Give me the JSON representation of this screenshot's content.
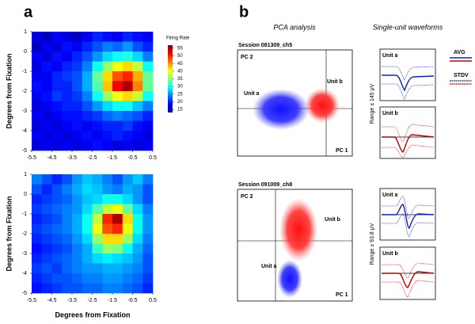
{
  "panel_a": {
    "label": "a",
    "xlim": [
      -5.5,
      0.5
    ],
    "ylim": [
      -5,
      1
    ],
    "xticks": [
      -5.5,
      -4.5,
      -3.5,
      -2.5,
      -1.5,
      -0.5,
      0.5
    ],
    "yticks": [
      1,
      0,
      -1,
      -2,
      -3,
      -4,
      -5
    ],
    "ylabel": "Degrees from Fixation",
    "xlabel": "Degrees from Fixation",
    "colorbar": {
      "title": "Firing Rate",
      "lim": [
        13,
        57
      ],
      "ticks": [
        55,
        50,
        45,
        40,
        35,
        30,
        25,
        20,
        15
      ]
    },
    "heatmaps": [
      {
        "values": [
          [
            17,
            16,
            18,
            17,
            16,
            18,
            20,
            19,
            18,
            20,
            19,
            18
          ],
          [
            16,
            18,
            17,
            19,
            18,
            20,
            22,
            24,
            23,
            25,
            22,
            20
          ],
          [
            18,
            17,
            19,
            18,
            20,
            22,
            25,
            28,
            30,
            31,
            28,
            24
          ],
          [
            17,
            19,
            18,
            20,
            21,
            24,
            30,
            36,
            40,
            42,
            38,
            30
          ],
          [
            18,
            18,
            20,
            21,
            22,
            26,
            34,
            42,
            48,
            50,
            44,
            34
          ],
          [
            19,
            18,
            20,
            20,
            22,
            26,
            33,
            43,
            52,
            55,
            46,
            34
          ],
          [
            18,
            19,
            21,
            20,
            21,
            24,
            30,
            36,
            40,
            42,
            38,
            30
          ],
          [
            17,
            18,
            19,
            20,
            20,
            22,
            25,
            28,
            30,
            30,
            27,
            24
          ],
          [
            18,
            17,
            18,
            19,
            19,
            20,
            21,
            23,
            24,
            23,
            22,
            20
          ],
          [
            17,
            18,
            17,
            18,
            19,
            18,
            19,
            20,
            20,
            21,
            19,
            18
          ],
          [
            18,
            17,
            18,
            17,
            18,
            19,
            18,
            19,
            20,
            19,
            18,
            17
          ],
          [
            17,
            18,
            17,
            18,
            17,
            18,
            19,
            18,
            17,
            18,
            17,
            18
          ]
        ]
      },
      {
        "values": [
          [
            24,
            22,
            20,
            22,
            25,
            27,
            26,
            24,
            22,
            25,
            27,
            24
          ],
          [
            22,
            20,
            22,
            24,
            26,
            28,
            27,
            25,
            24,
            26,
            25,
            22
          ],
          [
            20,
            21,
            22,
            23,
            25,
            27,
            28,
            30,
            30,
            28,
            25,
            22
          ],
          [
            21,
            22,
            23,
            24,
            25,
            28,
            33,
            38,
            40,
            34,
            28,
            24
          ],
          [
            20,
            21,
            22,
            24,
            26,
            30,
            38,
            50,
            55,
            42,
            30,
            25
          ],
          [
            21,
            22,
            23,
            24,
            26,
            30,
            40,
            48,
            50,
            40,
            30,
            25
          ],
          [
            20,
            21,
            22,
            23,
            25,
            28,
            36,
            42,
            42,
            36,
            28,
            24
          ],
          [
            19,
            20,
            21,
            22,
            24,
            26,
            32,
            36,
            35,
            30,
            26,
            23
          ],
          [
            20,
            21,
            22,
            23,
            24,
            26,
            28,
            29,
            28,
            27,
            25,
            22
          ],
          [
            21,
            22,
            21,
            23,
            24,
            25,
            25,
            26,
            26,
            25,
            24,
            22
          ],
          [
            20,
            21,
            22,
            22,
            23,
            24,
            24,
            25,
            25,
            24,
            23,
            21
          ],
          [
            19,
            20,
            21,
            22,
            22,
            23,
            23,
            24,
            24,
            23,
            22,
            20
          ]
        ]
      }
    ]
  },
  "panel_b": {
    "label": "b",
    "pca_title": "PCA analysis",
    "waveform_title": "Single-unit waveforms",
    "legend": [
      "AVG",
      "STDV"
    ],
    "sessions": [
      {
        "name": "Session 081309_ch5",
        "pc_y": "PC 2",
        "pc_x": "PC 1",
        "units": [
          "Unit a",
          "Unit b"
        ],
        "range": "Range ± 145 μV"
      },
      {
        "name": "Session 091009_ch8",
        "pc_y": "PC 2",
        "pc_x": "PC 1",
        "units": [
          "Unit a",
          "Unit b"
        ],
        "range": "Range ± 93.8 μV"
      }
    ]
  }
}
